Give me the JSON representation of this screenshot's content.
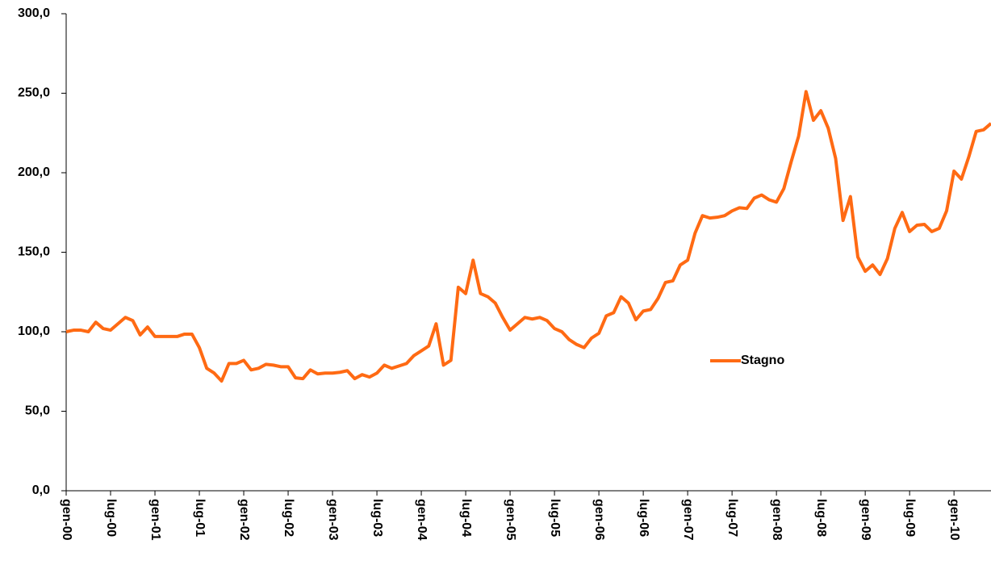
{
  "chart_data": {
    "type": "line",
    "categories": [
      "gen-00",
      null,
      null,
      null,
      null,
      null,
      "lug-00",
      null,
      null,
      null,
      null,
      null,
      "gen-01",
      null,
      null,
      null,
      null,
      null,
      "lug-01",
      null,
      null,
      null,
      null,
      null,
      "gen-02",
      null,
      null,
      null,
      null,
      null,
      "lug-02",
      null,
      null,
      null,
      null,
      null,
      "gen-03",
      null,
      null,
      null,
      null,
      null,
      "lug-03",
      null,
      null,
      null,
      null,
      null,
      "gen-04",
      null,
      null,
      null,
      null,
      null,
      "lug-04",
      null,
      null,
      null,
      null,
      null,
      "gen-05",
      null,
      null,
      null,
      null,
      null,
      "lug-05",
      null,
      null,
      null,
      null,
      null,
      "gen-06",
      null,
      null,
      null,
      null,
      null,
      "lug-06",
      null,
      null,
      null,
      null,
      null,
      "gen-07",
      null,
      null,
      null,
      null,
      null,
      "lug-07",
      null,
      null,
      null,
      null,
      null,
      "gen-08",
      null,
      null,
      null,
      null,
      null,
      "lug-08",
      null,
      null,
      null,
      null,
      null,
      "gen-09",
      null,
      null,
      null,
      null,
      null,
      "lug-09",
      null,
      null,
      null,
      null,
      null,
      "gen-10",
      null,
      null,
      null,
      null,
      null
    ],
    "series": [
      {
        "name": "Stagno",
        "color": "#ff6a13",
        "values": [
          100,
          101,
          101,
          100,
          106,
          102,
          101,
          105,
          109,
          107,
          98,
          103,
          97,
          97,
          97,
          97,
          98.5,
          98.5,
          90,
          77,
          74,
          69,
          80,
          80,
          82,
          76,
          77,
          79.5,
          79,
          78,
          78,
          71,
          70.5,
          76,
          73.5,
          74,
          74,
          74.5,
          75.5,
          70.5,
          73,
          71.5,
          74,
          79,
          77,
          78.5,
          80,
          85,
          88,
          91,
          105,
          79,
          82,
          128,
          124,
          145,
          124,
          122,
          118,
          109,
          101,
          105,
          109,
          108,
          109,
          107,
          102,
          100,
          95,
          92,
          90,
          96,
          99,
          110,
          112,
          122,
          118,
          107.5,
          113,
          114,
          121,
          131,
          132,
          142,
          145,
          162,
          173,
          171.5,
          172,
          173,
          176,
          178,
          177.5,
          184,
          186,
          183,
          181.5,
          190,
          207,
          223,
          251,
          233,
          239,
          228,
          209,
          170,
          185,
          147,
          138,
          142,
          136,
          146,
          165,
          175,
          163,
          167,
          167.5,
          163,
          165,
          176,
          201,
          196,
          210,
          226,
          227,
          231
        ]
      }
    ],
    "ylim": [
      0,
      300
    ],
    "yticks": [
      {
        "value": 0,
        "label": "0,0"
      },
      {
        "value": 50,
        "label": "50,0"
      },
      {
        "value": 100,
        "label": "100,0"
      },
      {
        "value": 150,
        "label": "150,0"
      },
      {
        "value": 200,
        "label": "200,0"
      },
      {
        "value": 250,
        "label": "250,0"
      },
      {
        "value": 300,
        "label": "300,0"
      }
    ],
    "legend": "right"
  }
}
